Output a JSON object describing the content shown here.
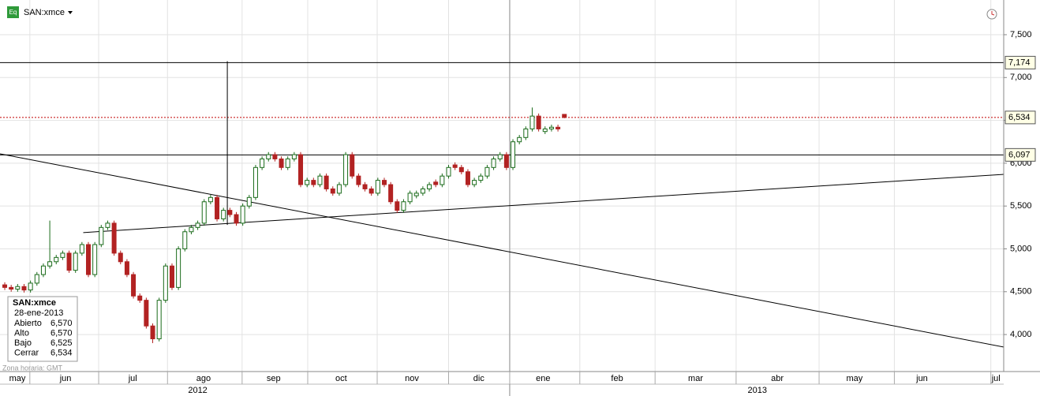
{
  "chart_data": {
    "type": "candlestick",
    "ticker": "SAN:xmce",
    "timezone": "Zona horaria: GMT",
    "xlim": [
      -0.74,
      155.3
    ],
    "ylim": [
      3568,
      7905
    ],
    "yticks": [
      {
        "value": 4000,
        "label": "4,000"
      },
      {
        "value": 4500,
        "label": "4,500"
      },
      {
        "value": 5000,
        "label": "5,000"
      },
      {
        "value": 5500,
        "label": "5,500"
      },
      {
        "value": 6000,
        "label": "6,000"
      },
      {
        "value": 6500,
        "label": "6,500"
      },
      {
        "value": 7000,
        "label": "7,000"
      },
      {
        "value": 7500,
        "label": "7,500"
      }
    ],
    "xticks": [
      {
        "value": 1.96,
        "label": "may"
      },
      {
        "value": 9.45,
        "label": "jun"
      },
      {
        "value": 19.9,
        "label": "jul"
      },
      {
        "value": 30.9,
        "label": "ago"
      },
      {
        "value": 41.8,
        "label": "sep"
      },
      {
        "value": 52.3,
        "label": "oct"
      },
      {
        "value": 63.3,
        "label": "nov"
      },
      {
        "value": 73.7,
        "label": "dic"
      },
      {
        "value": 83.7,
        "label": "ene"
      },
      {
        "value": 95.2,
        "label": "feb"
      },
      {
        "value": 107.4,
        "label": "mar"
      },
      {
        "value": 120.1,
        "label": "abr"
      },
      {
        "value": 132.1,
        "label": "may"
      },
      {
        "value": 142.6,
        "label": "jun"
      },
      {
        "value": 154.1,
        "label": "jul"
      }
    ],
    "month_boundaries": [
      3.9,
      14.6,
      25.3,
      36.9,
      47.1,
      57.9,
      69,
      78.5,
      89.4,
      101.1,
      113.7,
      126.6,
      138.3,
      153.3
    ],
    "years": [
      {
        "value": 30,
        "label": "2012"
      },
      {
        "value": 117,
        "label": "2013"
      }
    ],
    "year_boundaries": [
      78.5
    ],
    "grid": true,
    "up_color": "#1a6b1a",
    "down_color": "#b22222",
    "open": [
      4580,
      4550,
      4530,
      4560,
      4520,
      4600,
      4700,
      4800,
      4850,
      4900,
      4950,
      4750,
      4950,
      5050,
      4700,
      5050,
      5250,
      5300,
      4950,
      4850,
      4700,
      4450,
      4400,
      4100,
      3950,
      4400,
      4800,
      4550,
      5000,
      5200,
      5250,
      5300,
      5550,
      5600,
      5350,
      5450,
      5400,
      5300,
      5500,
      5600,
      5950,
      6050,
      6100,
      6050,
      5950,
      6050,
      6100,
      5750,
      5800,
      5750,
      5850,
      5700,
      5650,
      5750,
      6100,
      5850,
      5750,
      5700,
      5650,
      5800,
      5750,
      5550,
      5450,
      5550,
      5620,
      5650,
      5700,
      5780,
      5750,
      5850,
      5980,
      5950,
      5900,
      5750,
      5800,
      5850,
      5950,
      6050,
      6100,
      5950,
      6250,
      6300,
      6400,
      6550,
      6370,
      6400,
      6420,
      6570
    ],
    "high": [
      4610,
      4580,
      4590,
      4590,
      4630,
      4730,
      4830,
      5330,
      4930,
      4980,
      4980,
      4980,
      5080,
      5080,
      5080,
      5280,
      5330,
      5330,
      4980,
      4880,
      4730,
      4480,
      4430,
      4130,
      4430,
      4830,
      4830,
      5030,
      5230,
      5280,
      5330,
      5580,
      5630,
      5630,
      5480,
      5480,
      5430,
      5530,
      5630,
      5980,
      6080,
      6130,
      6130,
      6080,
      6080,
      6130,
      6130,
      5830,
      5830,
      5880,
      5880,
      5730,
      5780,
      6130,
      6130,
      5880,
      5780,
      5730,
      5830,
      5830,
      5780,
      5580,
      5580,
      5680,
      5680,
      5730,
      5780,
      5810,
      5880,
      5980,
      6010,
      5980,
      5930,
      5830,
      5880,
      5980,
      6080,
      6130,
      6130,
      6280,
      6330,
      6430,
      6650,
      6580,
      6430,
      6450,
      6450,
      6570
    ],
    "low": [
      4520,
      4500,
      4500,
      4490,
      4490,
      4570,
      4670,
      4770,
      4820,
      4870,
      4720,
      4720,
      4920,
      4670,
      4670,
      5020,
      5220,
      4920,
      4820,
      4670,
      4420,
      4370,
      4070,
      3900,
      3920,
      4370,
      4520,
      4520,
      4970,
      5170,
      5220,
      5270,
      5520,
      5320,
      5320,
      5370,
      5270,
      5270,
      5470,
      5570,
      5920,
      6020,
      6020,
      5920,
      5920,
      6020,
      5720,
      5720,
      5720,
      5720,
      5670,
      5620,
      5620,
      5720,
      5820,
      5720,
      5670,
      5620,
      5620,
      5720,
      5520,
      5420,
      5420,
      5520,
      5590,
      5620,
      5670,
      5720,
      5720,
      5820,
      5920,
      5870,
      5720,
      5720,
      5770,
      5820,
      5920,
      6020,
      5920,
      5920,
      6220,
      6270,
      6370,
      6370,
      6340,
      6370,
      6370,
      6525
    ],
    "close": [
      4550,
      4530,
      4560,
      4520,
      4600,
      4700,
      4800,
      4850,
      4900,
      4950,
      4750,
      4950,
      5050,
      4700,
      5050,
      5250,
      5300,
      4950,
      4850,
      4700,
      4450,
      4400,
      4100,
      3950,
      4400,
      4800,
      4550,
      5000,
      5200,
      5250,
      5300,
      5550,
      5600,
      5350,
      5450,
      5400,
      5300,
      5500,
      5600,
      5950,
      6050,
      6100,
      6050,
      5950,
      6050,
      6100,
      5750,
      5800,
      5750,
      5850,
      5700,
      5650,
      5750,
      6100,
      5850,
      5750,
      5700,
      5650,
      5800,
      5750,
      5550,
      5450,
      5550,
      5650,
      5650,
      5700,
      5750,
      5750,
      5850,
      5950,
      5950,
      5900,
      5750,
      5800,
      5850,
      5950,
      6050,
      6100,
      5950,
      6250,
      6300,
      6400,
      6550,
      6400,
      6400,
      6420,
      6400,
      6534
    ],
    "levels": [
      {
        "value": 7174,
        "label": "7,174",
        "style": "solid",
        "color": "#000000"
      },
      {
        "value": 6534,
        "label": "6,534",
        "style": "dashed",
        "color": "#c00000"
      },
      {
        "value": 6097,
        "label": "6,097",
        "style": "solid",
        "color": "#000000"
      }
    ],
    "trendlines": [
      {
        "from": [
          -0.74,
          6110
        ],
        "to": [
          155.3,
          3854
        ]
      },
      {
        "from": [
          12.2,
          5190
        ],
        "to": [
          155.3,
          5870
        ]
      }
    ],
    "verticals": [
      {
        "x": 34.6,
        "range": [
          5280,
          7190
        ]
      }
    ],
    "info": {
      "title": "SAN:xmce",
      "date": "28-ene-2013",
      "fields": [
        {
          "label": "Abierto",
          "value": "6,570"
        },
        {
          "label": "Alto",
          "value": "6,570"
        },
        {
          "label": "Bajo",
          "value": "6,525"
        },
        {
          "label": "Cerrar",
          "value": "6,534"
        }
      ]
    }
  }
}
